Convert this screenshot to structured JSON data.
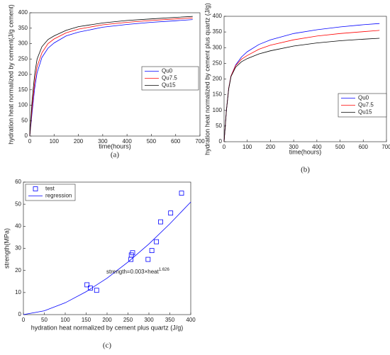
{
  "chart_data": [
    {
      "type": "line",
      "caption": "(a)",
      "x_label": "time(hours)",
      "y_label": "hydration heat normalized by cement(J/g cement)",
      "x": [
        0,
        10,
        20,
        30,
        50,
        75,
        100,
        150,
        200,
        300,
        400,
        500,
        600,
        670
      ],
      "series": [
        {
          "name": "Qu0",
          "color": "#0000ff",
          "values": [
            0,
            80,
            155,
            205,
            255,
            285,
            302,
            325,
            337,
            353,
            362,
            369,
            374,
            378
          ]
        },
        {
          "name": "Qu7.5",
          "color": "#ff0000",
          "values": [
            0,
            95,
            175,
            225,
            270,
            300,
            315,
            335,
            347,
            361,
            369,
            375,
            380,
            383
          ]
        },
        {
          "name": "Qu15",
          "color": "#000000",
          "values": [
            0,
            120,
            200,
            250,
            290,
            313,
            325,
            343,
            355,
            367,
            375,
            380,
            385,
            388
          ]
        }
      ],
      "xlim": [
        0,
        700
      ],
      "xticks": [
        0,
        100,
        200,
        300,
        400,
        500,
        600,
        700
      ],
      "ylim": [
        0,
        400
      ],
      "yticks": [
        0,
        50,
        100,
        150,
        200,
        250,
        300,
        350,
        400
      ],
      "legend": "right"
    },
    {
      "type": "line",
      "caption": "(b)",
      "x_label": "time(hours)",
      "y_label": "hydration heat normalized by  cement plus quartz (J/g)",
      "x": [
        0,
        10,
        20,
        30,
        50,
        75,
        100,
        150,
        200,
        300,
        400,
        500,
        600,
        670
      ],
      "series": [
        {
          "name": "Qu0",
          "color": "#0000ff",
          "values": [
            0,
            100,
            170,
            210,
            245,
            270,
            287,
            310,
            325,
            345,
            357,
            366,
            373,
            377
          ]
        },
        {
          "name": "Qu7.5",
          "color": "#ff0000",
          "values": [
            0,
            100,
            170,
            210,
            243,
            263,
            275,
            295,
            308,
            325,
            337,
            345,
            351,
            355
          ]
        },
        {
          "name": "Qu15",
          "color": "#000000",
          "values": [
            0,
            100,
            168,
            208,
            238,
            255,
            265,
            280,
            290,
            305,
            315,
            322,
            327,
            330
          ]
        }
      ],
      "xlim": [
        0,
        700
      ],
      "xticks": [
        0,
        100,
        200,
        300,
        400,
        500,
        600,
        700
      ],
      "ylim": [
        0,
        400
      ],
      "yticks": [
        0,
        50,
        100,
        150,
        200,
        250,
        300,
        350,
        400
      ],
      "legend": "lower right"
    },
    {
      "type": "scatter",
      "caption": "(c)",
      "x_label": "hydration heat normalized by cement plus quartz (J/g)",
      "y_label": "strength(MPa)",
      "annotation": {
        "text": "strength=0.003×heat",
        "superscript": "1.626"
      },
      "series": [
        {
          "name": "test",
          "type": "scatter",
          "color": "#0000ff",
          "x": [
            152,
            160,
            175,
            257,
            258,
            261,
            298,
            307,
            318,
            328,
            352,
            378
          ],
          "values": [
            13.5,
            12,
            11,
            25,
            27,
            28,
            25,
            29,
            33,
            42,
            46,
            55
          ]
        },
        {
          "name": "regression",
          "type": "line",
          "color": "#0000ff",
          "x": [
            0,
            50,
            100,
            150,
            200,
            250,
            300,
            350,
            400
          ],
          "values": [
            0,
            1.74,
            5.36,
            10.4,
            16.5,
            23.8,
            32.0,
            41.1,
            51.0
          ]
        }
      ],
      "xlim": [
        0,
        400
      ],
      "xticks": [
        0,
        50,
        100,
        150,
        200,
        250,
        300,
        350,
        400
      ],
      "ylim": [
        0,
        60
      ],
      "yticks": [
        0,
        10,
        20,
        30,
        40,
        50,
        60
      ],
      "legend": "upper left"
    }
  ]
}
